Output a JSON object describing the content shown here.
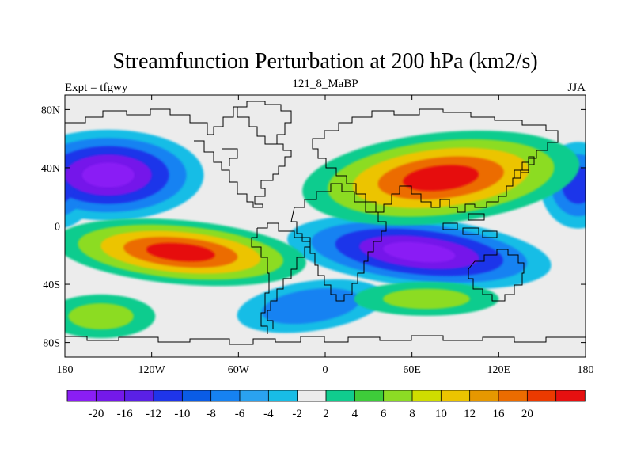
{
  "chart_data": {
    "type": "heatmap",
    "title": "Streamfunction Perturbation at 200 hPa (km2/s)",
    "left_label": "Expt = tfgwy",
    "center_label": "121_8_MaBP",
    "right_label": "JJA",
    "x_ticks": [
      "180",
      "120W",
      "60W",
      "0",
      "60E",
      "120E",
      "180"
    ],
    "x_tick_values": [
      -180,
      -120,
      -60,
      0,
      60,
      120,
      180
    ],
    "y_ticks": [
      "80N",
      "40N",
      "0",
      "40S",
      "80S"
    ],
    "y_tick_values": [
      80,
      40,
      0,
      -40,
      -80
    ],
    "xlim": [
      -180,
      180
    ],
    "ylim": [
      -90,
      90
    ],
    "colorbar": {
      "labels": [
        "-20",
        "-16",
        "-12",
        "-10",
        "-8",
        "-6",
        "-4",
        "-2",
        "2",
        "4",
        "6",
        "8",
        "10",
        "12",
        "16",
        "20"
      ],
      "values": [
        -20,
        -16,
        -12,
        -10,
        -8,
        -6,
        -4,
        -2,
        2,
        4,
        6,
        8,
        10,
        12,
        16,
        20
      ],
      "colors": [
        "#8a1ef5",
        "#7419ea",
        "#5a20e6",
        "#1f35ea",
        "#0a5ce6",
        "#1682f2",
        "#2aa2f0",
        "#18bde6",
        "#ececec",
        "#10cc8e",
        "#3ecc3a",
        "#8cdc24",
        "#cfdd00",
        "#ecc400",
        "#e69800",
        "#ec6c00",
        "#ec3a00",
        "#e61010"
      ]
    },
    "anomaly_centers": [
      {
        "lon": -150,
        "lat": 35,
        "value": -20
      },
      {
        "lon": -100,
        "lat": -18,
        "value": 20
      },
      {
        "lon": -155,
        "lat": -62,
        "value": 8
      },
      {
        "lon": -10,
        "lat": -55,
        "value": -10
      },
      {
        "lon": 80,
        "lat": 33,
        "value": 20
      },
      {
        "lon": 65,
        "lat": -18,
        "value": -20
      },
      {
        "lon": 70,
        "lat": -50,
        "value": 8
      },
      {
        "lon": 175,
        "lat": 28,
        "value": -12
      }
    ],
    "colors": {
      "background": "#ffffff",
      "near_zero": "#ececec",
      "coastline": "#000000"
    }
  }
}
